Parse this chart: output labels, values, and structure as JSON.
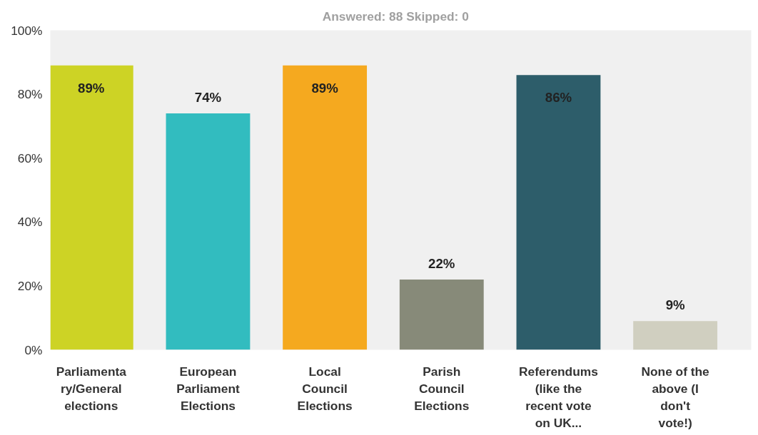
{
  "chart_data": {
    "type": "bar",
    "subtitle": "Answered: 88    Skipped: 0",
    "categories": [
      "Parliamentary/General elections",
      "European Parliament Elections",
      "Local Council Elections",
      "Parish Council Elections",
      "Referendums (like the recent vote on UK...",
      "None of the above (I don't vote!)"
    ],
    "values": [
      89,
      74,
      89,
      22,
      86,
      9
    ],
    "colors": [
      "#cdd325",
      "#32bcbf",
      "#f5a91f",
      "#878a79",
      "#2d5d6a",
      "#d0cfc0"
    ],
    "value_labels": [
      "89%",
      "74%",
      "89%",
      "22%",
      "86%",
      "9%"
    ],
    "ylim": [
      0,
      100
    ],
    "yticks": [
      {
        "value": 0,
        "label": "0%"
      },
      {
        "value": 20,
        "label": "20%"
      },
      {
        "value": 40,
        "label": "40%"
      },
      {
        "value": 60,
        "label": "60%"
      },
      {
        "value": 80,
        "label": "80%"
      },
      {
        "value": 100,
        "label": "100%"
      }
    ],
    "grid": false
  }
}
